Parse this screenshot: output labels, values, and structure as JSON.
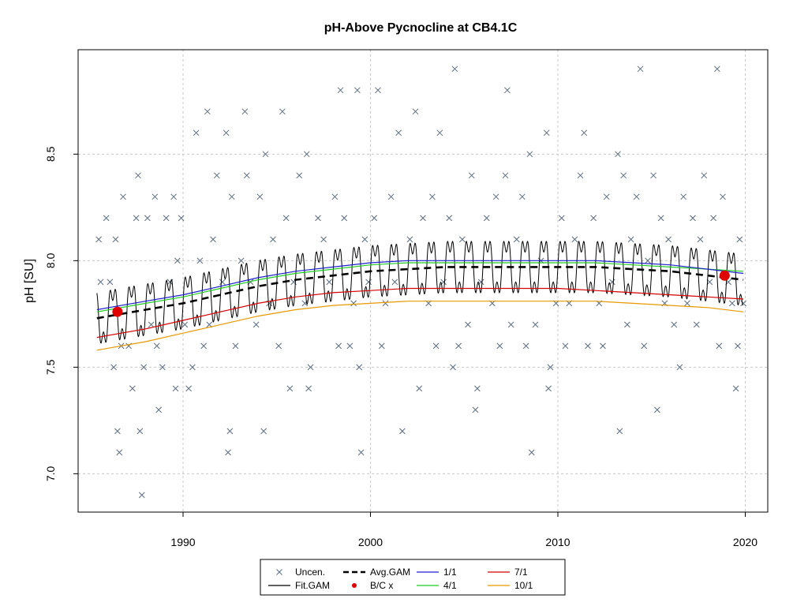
{
  "chart_data": {
    "type": "scatter",
    "title": "pH-Above Pycnocline at CB4.1C",
    "xlabel": "",
    "ylabel": "pH [SU]",
    "xlim": [
      1984.4,
      2021.2
    ],
    "ylim": [
      6.82,
      8.99
    ],
    "x_ticks": [
      "1990",
      "2000",
      "2010",
      "2020"
    ],
    "y_ticks": [
      "7.0",
      "7.5",
      "8.0",
      "8.5"
    ],
    "grid": true,
    "legend_position": "bottom",
    "legend": [
      {
        "label": "Uncen.",
        "symbol": "x",
        "color": "#5a6b80"
      },
      {
        "label": "Fit.GAM",
        "symbol": "line",
        "color": "#000000"
      },
      {
        "label": "Avg.GAM",
        "symbol": "dashed",
        "color": "#000000"
      },
      {
        "label": "B/C x",
        "symbol": "dot",
        "color": "#e00000"
      },
      {
        "label": "1/1",
        "symbol": "line",
        "color": "#1f1fd0"
      },
      {
        "label": "4/1",
        "symbol": "line",
        "color": "#22cc22"
      },
      {
        "label": "7/1",
        "symbol": "line",
        "color": "#d40000"
      },
      {
        "label": "10/1",
        "symbol": "line",
        "color": "#e69a00"
      }
    ],
    "series": [
      {
        "name": "Uncen.",
        "kind": "points",
        "points": [
          [
            1985.5,
            8.1
          ],
          [
            1985.6,
            7.9
          ],
          [
            1985.9,
            8.2
          ],
          [
            1986.1,
            7.9
          ],
          [
            1986.3,
            7.5
          ],
          [
            1986.4,
            8.1
          ],
          [
            1986.5,
            7.2
          ],
          [
            1986.6,
            7.1
          ],
          [
            1986.7,
            7.6
          ],
          [
            1986.8,
            8.3
          ],
          [
            1987.1,
            7.6
          ],
          [
            1987.3,
            7.4
          ],
          [
            1987.5,
            8.2
          ],
          [
            1987.6,
            8.4
          ],
          [
            1987.7,
            7.2
          ],
          [
            1987.8,
            6.9
          ],
          [
            1987.9,
            7.5
          ],
          [
            1988.1,
            8.2
          ],
          [
            1988.3,
            7.7
          ],
          [
            1988.5,
            8.3
          ],
          [
            1988.6,
            7.6
          ],
          [
            1988.7,
            7.3
          ],
          [
            1988.9,
            7.5
          ],
          [
            1989.1,
            8.2
          ],
          [
            1989.3,
            7.9
          ],
          [
            1989.5,
            8.3
          ],
          [
            1989.6,
            7.4
          ],
          [
            1989.7,
            8.0
          ],
          [
            1989.9,
            8.2
          ],
          [
            1990.1,
            7.7
          ],
          [
            1990.3,
            7.4
          ],
          [
            1990.5,
            7.5
          ],
          [
            1990.7,
            8.6
          ],
          [
            1990.9,
            8.0
          ],
          [
            1991.1,
            7.6
          ],
          [
            1991.3,
            8.7
          ],
          [
            1991.4,
            7.7
          ],
          [
            1991.6,
            8.1
          ],
          [
            1991.8,
            8.4
          ],
          [
            1992.1,
            7.9
          ],
          [
            1992.3,
            8.6
          ],
          [
            1992.4,
            7.1
          ],
          [
            1992.5,
            7.2
          ],
          [
            1992.6,
            8.3
          ],
          [
            1992.8,
            7.6
          ],
          [
            1993.1,
            8.0
          ],
          [
            1993.3,
            8.7
          ],
          [
            1993.4,
            8.4
          ],
          [
            1993.6,
            7.9
          ],
          [
            1993.9,
            7.7
          ],
          [
            1994.1,
            8.3
          ],
          [
            1994.3,
            7.2
          ],
          [
            1994.4,
            8.5
          ],
          [
            1994.6,
            7.8
          ],
          [
            1994.8,
            8.1
          ],
          [
            1995.1,
            7.6
          ],
          [
            1995.3,
            8.7
          ],
          [
            1995.5,
            8.2
          ],
          [
            1995.7,
            7.4
          ],
          [
            1995.9,
            7.9
          ],
          [
            1996.2,
            8.4
          ],
          [
            1996.5,
            7.8
          ],
          [
            1996.6,
            8.5
          ],
          [
            1996.7,
            7.4
          ],
          [
            1996.8,
            7.5
          ],
          [
            1997.2,
            8.2
          ],
          [
            1997.5,
            8.1
          ],
          [
            1997.8,
            7.9
          ],
          [
            1998.1,
            8.3
          ],
          [
            1998.3,
            7.6
          ],
          [
            1998.4,
            8.8
          ],
          [
            1998.6,
            8.2
          ],
          [
            1998.9,
            7.6
          ],
          [
            1999.1,
            7.8
          ],
          [
            1999.3,
            8.8
          ],
          [
            1999.4,
            7.5
          ],
          [
            1999.5,
            7.1
          ],
          [
            1999.7,
            8.1
          ],
          [
            1999.9,
            7.9
          ],
          [
            2000.2,
            8.2
          ],
          [
            2000.4,
            8.8
          ],
          [
            2000.6,
            7.6
          ],
          [
            2000.8,
            7.8
          ],
          [
            2001.1,
            8.3
          ],
          [
            2001.3,
            7.9
          ],
          [
            2001.5,
            8.6
          ],
          [
            2001.7,
            7.2
          ],
          [
            2002.1,
            8.1
          ],
          [
            2002.4,
            8.7
          ],
          [
            2002.6,
            7.4
          ],
          [
            2002.8,
            8.2
          ],
          [
            2003.1,
            7.8
          ],
          [
            2003.3,
            8.3
          ],
          [
            2003.5,
            7.6
          ],
          [
            2003.7,
            8.6
          ],
          [
            2003.9,
            7.9
          ],
          [
            2004.2,
            8.2
          ],
          [
            2004.4,
            7.5
          ],
          [
            2004.5,
            8.9
          ],
          [
            2004.7,
            7.6
          ],
          [
            2004.9,
            8.1
          ],
          [
            2005.2,
            7.7
          ],
          [
            2005.4,
            8.4
          ],
          [
            2005.6,
            7.3
          ],
          [
            2005.7,
            7.4
          ],
          [
            2005.9,
            7.9
          ],
          [
            2006.2,
            8.2
          ],
          [
            2006.5,
            7.8
          ],
          [
            2006.7,
            8.3
          ],
          [
            2006.9,
            7.6
          ],
          [
            2007.2,
            8.4
          ],
          [
            2007.3,
            8.8
          ],
          [
            2007.5,
            7.7
          ],
          [
            2007.8,
            8.1
          ],
          [
            2008.1,
            8.3
          ],
          [
            2008.3,
            7.6
          ],
          [
            2008.5,
            8.5
          ],
          [
            2008.6,
            7.1
          ],
          [
            2008.8,
            7.7
          ],
          [
            2009.1,
            8.0
          ],
          [
            2009.4,
            8.6
          ],
          [
            2009.5,
            7.4
          ],
          [
            2009.6,
            7.5
          ],
          [
            2009.9,
            7.8
          ],
          [
            2010.2,
            8.2
          ],
          [
            2010.4,
            7.6
          ],
          [
            2010.6,
            7.8
          ],
          [
            2010.9,
            8.1
          ],
          [
            2011.2,
            8.4
          ],
          [
            2011.4,
            8.6
          ],
          [
            2011.6,
            7.6
          ],
          [
            2011.9,
            8.2
          ],
          [
            2012.2,
            7.8
          ],
          [
            2012.4,
            7.6
          ],
          [
            2012.6,
            8.3
          ],
          [
            2012.9,
            7.9
          ],
          [
            2013.2,
            8.5
          ],
          [
            2013.3,
            7.2
          ],
          [
            2013.5,
            8.4
          ],
          [
            2013.7,
            7.7
          ],
          [
            2013.9,
            8.1
          ],
          [
            2014.2,
            8.3
          ],
          [
            2014.4,
            8.9
          ],
          [
            2014.6,
            7.6
          ],
          [
            2014.8,
            8.0
          ],
          [
            2015.1,
            8.4
          ],
          [
            2015.3,
            7.3
          ],
          [
            2015.5,
            8.2
          ],
          [
            2015.7,
            7.8
          ],
          [
            2015.9,
            8.1
          ],
          [
            2016.2,
            7.7
          ],
          [
            2016.5,
            7.5
          ],
          [
            2016.7,
            8.3
          ],
          [
            2016.9,
            7.8
          ],
          [
            2017.2,
            8.2
          ],
          [
            2017.4,
            7.7
          ],
          [
            2017.6,
            8.1
          ],
          [
            2017.8,
            8.4
          ],
          [
            2018.1,
            7.9
          ],
          [
            2018.3,
            8.2
          ],
          [
            2018.5,
            8.9
          ],
          [
            2018.6,
            7.6
          ],
          [
            2018.8,
            8.3
          ],
          [
            2019.1,
            7.9
          ],
          [
            2019.3,
            7.8
          ],
          [
            2019.5,
            7.4
          ],
          [
            2019.6,
            7.6
          ],
          [
            2019.7,
            8.1
          ],
          [
            2019.9,
            7.8
          ]
        ]
      },
      {
        "name": "B/C x",
        "kind": "dots",
        "points": [
          [
            1986.5,
            7.76
          ],
          [
            2018.9,
            7.93
          ]
        ]
      },
      {
        "name": "1/1",
        "kind": "line",
        "x": [
          1985.4,
          1988,
          1990,
          1992,
          1994,
          1996,
          1998,
          2000,
          2002,
          2004,
          2006,
          2008,
          2010,
          2012,
          2014,
          2016,
          2018,
          2019.9
        ],
        "y": [
          7.77,
          7.81,
          7.84,
          7.88,
          7.92,
          7.95,
          7.97,
          7.99,
          8.0,
          8.0,
          8.0,
          8.0,
          8.0,
          8.0,
          7.99,
          7.98,
          7.96,
          7.94
        ]
      },
      {
        "name": "4/1",
        "kind": "line",
        "x": [
          1985.4,
          1988,
          1990,
          1992,
          1994,
          1996,
          1998,
          2000,
          2002,
          2004,
          2006,
          2008,
          2010,
          2012,
          2014,
          2016,
          2018,
          2019.9
        ],
        "y": [
          7.76,
          7.8,
          7.83,
          7.87,
          7.91,
          7.94,
          7.96,
          7.98,
          7.99,
          7.99,
          7.99,
          7.99,
          7.99,
          7.99,
          7.98,
          7.97,
          7.96,
          7.95
        ]
      },
      {
        "name": "7/1",
        "kind": "line",
        "x": [
          1985.4,
          1988,
          1990,
          1992,
          1994,
          1996,
          1998,
          2000,
          2002,
          2004,
          2006,
          2008,
          2010,
          2012,
          2014,
          2016,
          2018,
          2019.9
        ],
        "y": [
          7.64,
          7.68,
          7.72,
          7.76,
          7.8,
          7.83,
          7.85,
          7.86,
          7.87,
          7.87,
          7.87,
          7.87,
          7.87,
          7.86,
          7.85,
          7.84,
          7.83,
          7.82
        ]
      },
      {
        "name": "10/1",
        "kind": "line",
        "x": [
          1985.4,
          1988,
          1990,
          1992,
          1994,
          1996,
          1998,
          2000,
          2002,
          2004,
          2006,
          2008,
          2010,
          2012,
          2014,
          2016,
          2018,
          2019.9
        ],
        "y": [
          7.58,
          7.62,
          7.66,
          7.7,
          7.74,
          7.77,
          7.79,
          7.8,
          7.81,
          7.81,
          7.81,
          7.81,
          7.81,
          7.81,
          7.8,
          7.79,
          7.78,
          7.76
        ]
      },
      {
        "name": "Avg.GAM",
        "kind": "dashed",
        "x": [
          1985.4,
          1988,
          1990,
          1992,
          1994,
          1996,
          1998,
          2000,
          2002,
          2004,
          2006,
          2008,
          2010,
          2012,
          2014,
          2016,
          2018,
          2019.9
        ],
        "y": [
          7.73,
          7.77,
          7.8,
          7.84,
          7.88,
          7.91,
          7.93,
          7.95,
          7.96,
          7.97,
          7.97,
          7.97,
          7.97,
          7.97,
          7.96,
          7.95,
          7.93,
          7.91
        ]
      },
      {
        "name": "Fit.GAM",
        "kind": "seasonal",
        "start": 1985.4,
        "end": 2019.9,
        "amplitude": 0.12,
        "baseline": "Avg.GAM"
      }
    ]
  }
}
